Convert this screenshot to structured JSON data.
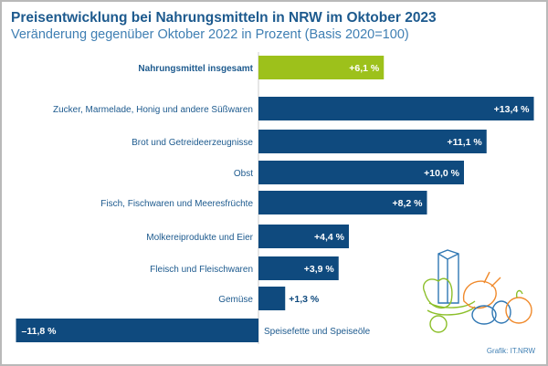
{
  "title": "Preisentwicklung bei Nahrungsmitteln in NRW im Oktober 2023",
  "subtitle": "Veränderung gegenüber Oktober 2022 in Prozent (Basis 2020=100)",
  "credit": "Grafik: IT.NRW",
  "colors": {
    "total": "#9dc11b",
    "bar": "#0f4a7e",
    "label": "#1d5a8e"
  },
  "chart_data": {
    "type": "bar",
    "orientation": "horizontal",
    "title": "Preisentwicklung bei Nahrungsmitteln in NRW im Oktober 2023",
    "subtitle": "Veränderung gegenüber Oktober 2022 in Prozent (Basis 2020=100)",
    "xlabel": "",
    "ylabel": "",
    "xlim": [
      -12.5,
      13.4
    ],
    "grid": false,
    "categories": [
      "Nahrungsmittel insgesamt",
      "Zucker, Marmelade, Honig und andere Süßwaren",
      "Brot und Getreideerzeugnisse",
      "Obst",
      "Fisch, Fischwaren und Meeresfrüchte",
      "Molkereiprodukte und Eier",
      "Fleisch und Fleischwaren",
      "Gemüse",
      "Speisefette und Speiseöle"
    ],
    "values": [
      6.1,
      13.4,
      11.1,
      10.0,
      8.2,
      4.4,
      3.9,
      1.3,
      -11.8
    ],
    "labels": [
      "+6,1 %",
      "+13,4 %",
      "+11,1 %",
      "+10,0 %",
      "+8,2 %",
      "+4,4 %",
      "+3,9 %",
      "+1,3 %",
      "–11,8 %"
    ],
    "highlight": [
      true,
      false,
      false,
      false,
      false,
      false,
      false,
      false,
      false
    ]
  }
}
